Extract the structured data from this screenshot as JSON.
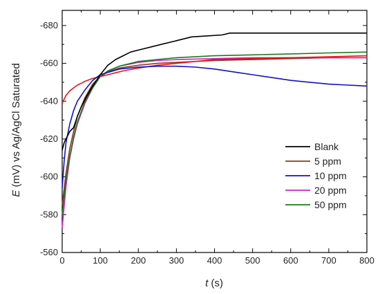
{
  "chart_data": {
    "type": "line",
    "title": "",
    "xlabel_italic": "t",
    "xlabel_unit": " (s)",
    "ylabel_italic": "E",
    "ylabel_rest": " (mV) vs Ag/AgCl Saturated",
    "xlim": [
      0,
      800
    ],
    "ylim": [
      -560,
      -688
    ],
    "y_axis_direction": "values become more negative upward",
    "x_ticks": [
      0,
      100,
      200,
      300,
      400,
      500,
      600,
      700,
      800
    ],
    "y_ticks": [
      -560,
      -580,
      -600,
      -620,
      -640,
      -660,
      -680
    ],
    "x_tick_labels": [
      "0",
      "100",
      "200",
      "300",
      "400",
      "500",
      "600",
      "700",
      "800"
    ],
    "y_tick_labels": [
      "-560",
      "-580",
      "-600",
      "-620",
      "-640",
      "-660",
      "-680"
    ],
    "grid": false,
    "legend_position": "bottom-right",
    "series": [
      {
        "name": "Blank",
        "color": "#000000",
        "x": [
          0,
          5,
          10,
          20,
          30,
          40,
          50,
          60,
          80,
          100,
          120,
          140,
          160,
          180,
          200,
          230,
          260,
          300,
          340,
          380,
          420,
          440,
          460,
          500,
          600,
          700,
          800
        ],
        "y": [
          -614,
          -618,
          -620,
          -624,
          -626,
          -632,
          -637,
          -641,
          -648,
          -654,
          -659,
          -662,
          -664,
          -666,
          -667,
          -668.5,
          -670,
          -672,
          -674,
          -674.5,
          -675,
          -676,
          -676,
          -676,
          -676,
          -676,
          -676
        ]
      },
      {
        "name": "5 ppm",
        "color": "#8b3a1a",
        "x": [
          0,
          10,
          20,
          30,
          40,
          60,
          80,
          100,
          120,
          150,
          200,
          250,
          300,
          400,
          500,
          600,
          700,
          800
        ],
        "y": [
          -585,
          -602,
          -615,
          -624,
          -632,
          -642,
          -649,
          -653,
          -655.5,
          -657.5,
          -659,
          -660,
          -660.5,
          -661.5,
          -662,
          -662.5,
          -663,
          -663
        ]
      },
      {
        "name": "10 ppm",
        "color": "#1010cc",
        "x": [
          0,
          5,
          10,
          20,
          30,
          40,
          60,
          80,
          100,
          150,
          200,
          250,
          300,
          350,
          400,
          450,
          500,
          550,
          600,
          650,
          700,
          750,
          800
        ],
        "y": [
          -594,
          -608,
          -618,
          -628,
          -635,
          -640,
          -646,
          -651,
          -654,
          -657,
          -658,
          -658.5,
          -658.5,
          -658,
          -657,
          -655.5,
          -654,
          -652.5,
          -651,
          -650,
          -649,
          -648.5,
          -648
        ]
      },
      {
        "name": "20 ppm",
        "color": "#cc22cc",
        "x": [
          0,
          10,
          20,
          30,
          40,
          60,
          80,
          100,
          120,
          150,
          200,
          250,
          300,
          400,
          500,
          600,
          700,
          800
        ],
        "y": [
          -573,
          -595,
          -610,
          -620,
          -628,
          -639,
          -647,
          -653,
          -656,
          -658.5,
          -660.5,
          -661.5,
          -662,
          -662.5,
          -663,
          -663,
          -663,
          -663
        ]
      },
      {
        "name": "50 ppm",
        "color": "#1a7a1a",
        "x": [
          0,
          10,
          20,
          30,
          40,
          60,
          80,
          100,
          120,
          150,
          200,
          250,
          300,
          400,
          500,
          600,
          700,
          800
        ],
        "y": [
          -580,
          -598,
          -611,
          -621,
          -629,
          -640,
          -647,
          -653,
          -656,
          -658.5,
          -661,
          -662,
          -663,
          -664,
          -664.5,
          -665,
          -665.5,
          -666
        ]
      },
      {
        "name": "red-unlabeled",
        "color": "#ee1111",
        "x": [
          0,
          5,
          10,
          20,
          30,
          40,
          50,
          60,
          80,
          100,
          120,
          140,
          160,
          200,
          250,
          300,
          350,
          400,
          500,
          600,
          700,
          800
        ],
        "y": [
          -639,
          -641,
          -643,
          -645.5,
          -647,
          -648.5,
          -649.5,
          -650.5,
          -652,
          -653,
          -654,
          -655,
          -656,
          -657.5,
          -659,
          -660,
          -661,
          -662,
          -662.5,
          -663,
          -663.5,
          -664
        ]
      }
    ],
    "legend_order": [
      "Blank",
      "5 ppm",
      "10 ppm",
      "20 ppm",
      "50 ppm"
    ]
  }
}
